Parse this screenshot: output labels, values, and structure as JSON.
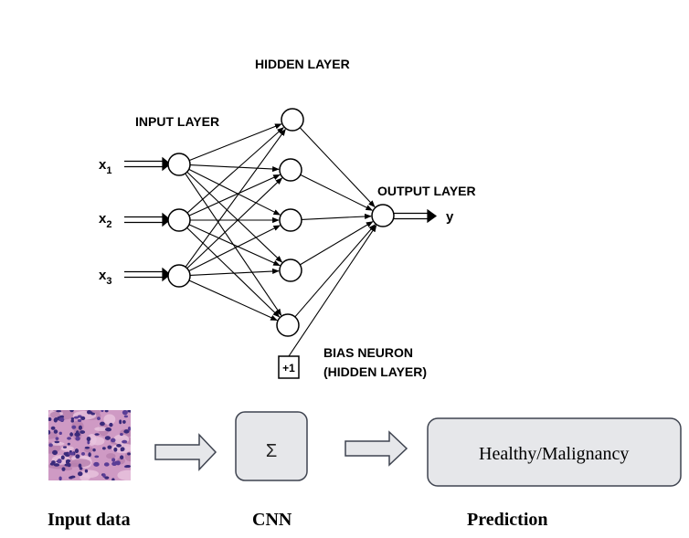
{
  "network": {
    "hidden_layer_label": "HIDDEN LAYER",
    "input_layer_label": "INPUT LAYER",
    "output_layer_label": "OUTPUT LAYER",
    "inputs": [
      {
        "var": "x",
        "sub": "1"
      },
      {
        "var": "x",
        "sub": "2"
      },
      {
        "var": "x",
        "sub": "3"
      }
    ],
    "output_label": "y",
    "bias_symbol": "+1",
    "bias_label_line1": "BIAS NEURON",
    "bias_label_line2": "(HIDDEN LAYER)",
    "colors": {
      "stroke": "#000000",
      "background": "#ffffff"
    }
  },
  "pipeline": {
    "input_caption": "Input data",
    "cnn_symbol": "Σ",
    "cnn_caption": "CNN",
    "prediction_text": "Healthy/Malignancy",
    "prediction_caption": "Prediction",
    "colors": {
      "box_fill": "#e6e7ea",
      "box_stroke": "#3f4450",
      "arrow_fill": "#e6e7ea",
      "arrow_stroke": "#3f4450",
      "tissue_base": "#cf9ac4",
      "nuclei": "#3a2a7a"
    }
  }
}
